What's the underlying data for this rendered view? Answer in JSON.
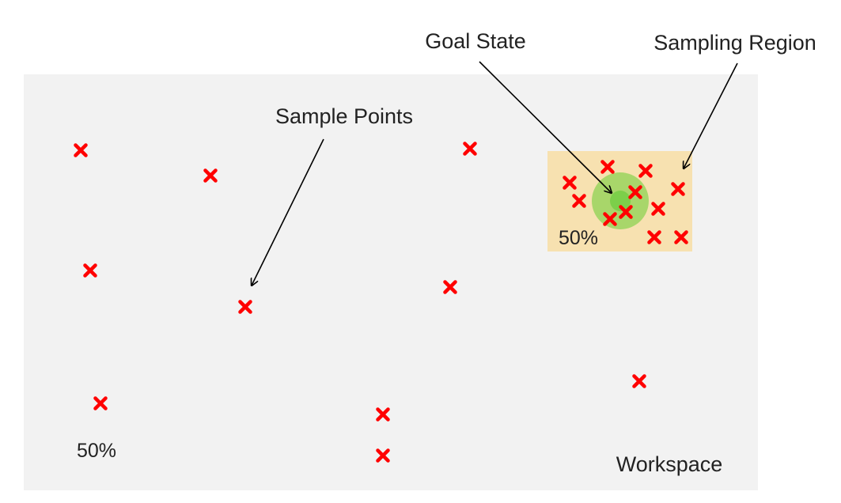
{
  "labels": {
    "goal_state": "Goal State",
    "sampling_region": "Sampling Region",
    "sample_points": "Sample Points",
    "region_percent": "50%",
    "workspace_percent": "50%",
    "workspace": "Workspace"
  },
  "colors": {
    "workspace": "#f2f2f2",
    "sampling_region": "#f7e1b0",
    "goal_outer": "#a8d66a",
    "goal_inner": "#7ccf4a",
    "marker": "#ff0000",
    "arrow": "#000000",
    "text": "#222222"
  },
  "marker_icon": "x-mark-icon"
}
